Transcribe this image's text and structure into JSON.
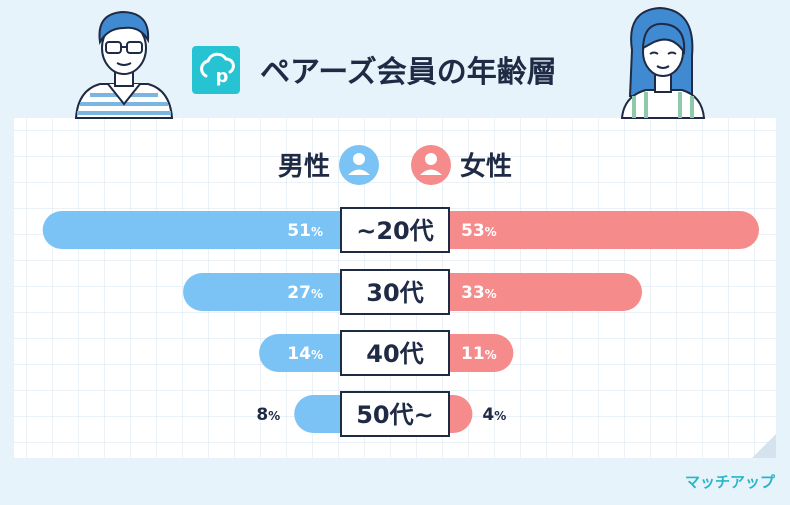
{
  "title": "ペアーズ会員の年齢層",
  "logo": {
    "icon": "pairs-logo-icon",
    "letter": "p",
    "color": "#26c3d3"
  },
  "legend": {
    "male_label": "男性",
    "female_label": "女性"
  },
  "colors": {
    "male": "#7bc2f5",
    "female": "#f58b8b",
    "text_dark": "#1f2a44",
    "grid": "#d6e4f0",
    "background": "#e6f3fb"
  },
  "chart_data": {
    "type": "bar",
    "title": "ペアーズ会員の年齢層",
    "categories": [
      "~20代",
      "30代",
      "40代",
      "50代~"
    ],
    "series": [
      {
        "name": "男性",
        "values": [
          51,
          27,
          14,
          8
        ]
      },
      {
        "name": "女性",
        "values": [
          53,
          33,
          11,
          4
        ]
      }
    ],
    "value_suffix": "%",
    "layout": "diverging-horizontal",
    "grid": true
  },
  "watermark": "マッチアップ"
}
